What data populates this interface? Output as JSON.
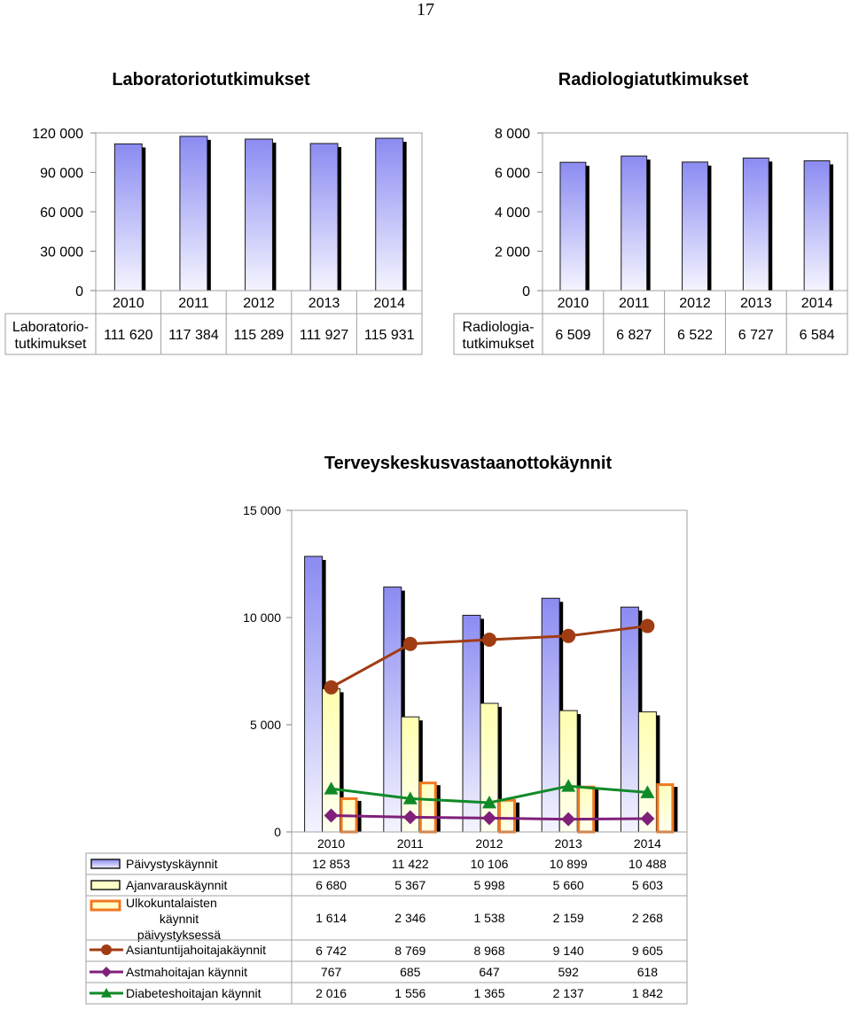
{
  "page_number": "17",
  "chart_data": [
    {
      "type": "bar",
      "title": "Laboratoriotutkimukset",
      "series_label": "Laboratorio-\ntutkimukset",
      "categories": [
        "2010",
        "2011",
        "2012",
        "2013",
        "2014"
      ],
      "series": [
        {
          "name": "Laboratoriotutkimukset",
          "values": [
            111620,
            117384,
            115289,
            111927,
            115931
          ]
        }
      ],
      "value_labels": [
        "111 620",
        "117 384",
        "115 289",
        "111 927",
        "115 931"
      ],
      "ylim": [
        0,
        120000
      ],
      "yticks": [
        "0",
        "30 000",
        "60 000",
        "90 000",
        "120 000"
      ],
      "colors": {
        "bar_top": "#8b8bf2",
        "bar_bottom": "#f4f4ff",
        "shadow": "#000000"
      }
    },
    {
      "type": "bar",
      "title": "Radiologiatutkimukset",
      "series_label": "Radiologia-\ntutkimukset",
      "categories": [
        "2010",
        "2011",
        "2012",
        "2013",
        "2014"
      ],
      "series": [
        {
          "name": "Radiologiatutkimukset",
          "values": [
            6509,
            6827,
            6522,
            6727,
            6584
          ]
        }
      ],
      "value_labels": [
        "6 509",
        "6 827",
        "6 522",
        "6 727",
        "6 584"
      ],
      "ylim": [
        0,
        8000
      ],
      "yticks": [
        "0",
        "2 000",
        "4 000",
        "6 000",
        "8 000"
      ],
      "colors": {
        "bar_top": "#8b8bf2",
        "bar_bottom": "#f4f4ff",
        "shadow": "#000000"
      }
    },
    {
      "type": "bar",
      "title": "Terveyskeskusvastaanottokäynnit",
      "categories": [
        "2010",
        "2011",
        "2012",
        "2013",
        "2014"
      ],
      "ylim": [
        0,
        15000
      ],
      "yticks": [
        "0",
        "5 000",
        "10 000",
        "15 000"
      ],
      "series": [
        {
          "name": "Päivystyskäynnit",
          "kind": "bar",
          "values": [
            12853,
            11422,
            10106,
            10899,
            10488
          ],
          "labels": [
            "12 853",
            "11 422",
            "10 106",
            "10 899",
            "10 488"
          ],
          "color": "#8b8bf2"
        },
        {
          "name": "Ajanvarauskäynnit",
          "kind": "bar",
          "values": [
            6680,
            5367,
            5998,
            5660,
            5603
          ],
          "labels": [
            "6 680",
            "5 367",
            "5 998",
            "5 660",
            "5 603"
          ],
          "color": "#ffffc8"
        },
        {
          "name": "Ulkokuntalaisten\nkäynnit\npäivystyksessä",
          "kind": "bar-outline",
          "values": [
            1614,
            2346,
            1538,
            2159,
            2268
          ],
          "labels": [
            "1 614",
            "2 346",
            "1 538",
            "2 159",
            "2 268"
          ],
          "color": "#f07820"
        },
        {
          "name": "Asiantuntijahoitajakäynnit",
          "kind": "line",
          "marker": "circle",
          "values": [
            6742,
            8769,
            8968,
            9140,
            9605
          ],
          "labels": [
            "6 742",
            "8 769",
            "8 968",
            "9 140",
            "9 605"
          ],
          "color": "#a03c14"
        },
        {
          "name": "Astmahoitajan käynnit",
          "kind": "line",
          "marker": "diamond",
          "values": [
            767,
            685,
            647,
            592,
            618
          ],
          "labels": [
            "767",
            "685",
            "647",
            "592",
            "618"
          ],
          "color": "#80207a"
        },
        {
          "name": "Diabeteshoitajan käynnit",
          "kind": "line",
          "marker": "triangle",
          "values": [
            2016,
            1556,
            1365,
            2137,
            1842
          ],
          "labels": [
            "2 016",
            "1 556",
            "1 365",
            "2 137",
            "1 842"
          ],
          "color": "#108a28"
        }
      ]
    }
  ]
}
